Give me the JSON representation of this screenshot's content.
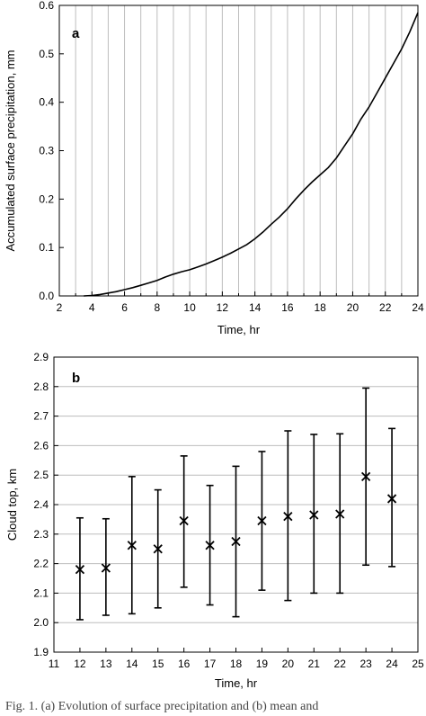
{
  "chart_data": [
    {
      "type": "line",
      "panel_label": "a",
      "xlabel": "Time, hr",
      "ylabel": "Accumulated surface precipitation, mm",
      "xlim": [
        2,
        24
      ],
      "ylim": [
        0.0,
        0.6
      ],
      "x_ticks": [
        "2",
        "4",
        "6",
        "8",
        "10",
        "12",
        "14",
        "16",
        "18",
        "20",
        "22",
        "24"
      ],
      "y_ticks": [
        "0.0",
        "0.1",
        "0.2",
        "0.3",
        "0.4",
        "0.5",
        "0.6"
      ],
      "grid": "vertical lines at each hour from 3 to 23",
      "series": [
        {
          "x": [
            3.5,
            4,
            4.5,
            5,
            5.5,
            6,
            6.5,
            7,
            7.5,
            8,
            8.5,
            9,
            9.5,
            10,
            10.5,
            11,
            11.5,
            12,
            12.5,
            13,
            13.5,
            14,
            14.5,
            15,
            15.5,
            16,
            16.5,
            17,
            17.5,
            18,
            18.5,
            19,
            19.5,
            20,
            20.5,
            21,
            21.5,
            22,
            22.5,
            23,
            23.5,
            24
          ],
          "y": [
            0.0,
            0.001,
            0.003,
            0.006,
            0.009,
            0.013,
            0.017,
            0.022,
            0.027,
            0.032,
            0.039,
            0.045,
            0.05,
            0.054,
            0.06,
            0.066,
            0.073,
            0.08,
            0.088,
            0.097,
            0.106,
            0.118,
            0.132,
            0.148,
            0.163,
            0.18,
            0.2,
            0.218,
            0.235,
            0.25,
            0.265,
            0.285,
            0.31,
            0.335,
            0.365,
            0.39,
            0.42,
            0.45,
            0.48,
            0.51,
            0.545,
            0.585
          ]
        }
      ]
    },
    {
      "type": "scatter",
      "panel_label": "b",
      "xlabel": "Time, hr",
      "ylabel": "Cloud top, km",
      "xlim": [
        11,
        25
      ],
      "ylim": [
        1.9,
        2.9
      ],
      "x_ticks": [
        "11",
        "12",
        "13",
        "14",
        "15",
        "16",
        "17",
        "18",
        "19",
        "20",
        "21",
        "22",
        "23",
        "24",
        "25"
      ],
      "y_ticks": [
        "1.9",
        "2.0",
        "2.1",
        "2.2",
        "2.3",
        "2.4",
        "2.5",
        "2.6",
        "2.7",
        "2.8",
        "2.9"
      ],
      "grid": "horizontal lines at each y tick",
      "marker": "x with vertical error bars",
      "x": [
        12,
        13,
        14,
        15,
        16,
        17,
        18,
        19,
        20,
        21,
        22,
        23,
        24
      ],
      "y": [
        2.18,
        2.185,
        2.262,
        2.25,
        2.345,
        2.262,
        2.275,
        2.345,
        2.36,
        2.365,
        2.368,
        2.495,
        2.42
      ],
      "error_low": [
        2.01,
        2.025,
        2.03,
        2.05,
        2.12,
        2.06,
        2.02,
        2.11,
        2.075,
        2.1,
        2.1,
        2.195,
        2.19
      ],
      "error_high": [
        2.355,
        2.352,
        2.495,
        2.45,
        2.565,
        2.465,
        2.53,
        2.58,
        2.65,
        2.638,
        2.64,
        2.795,
        2.658
      ]
    }
  ],
  "caption": "Fig. 1. (a) Evolution of surface precipitation and (b) mean and"
}
